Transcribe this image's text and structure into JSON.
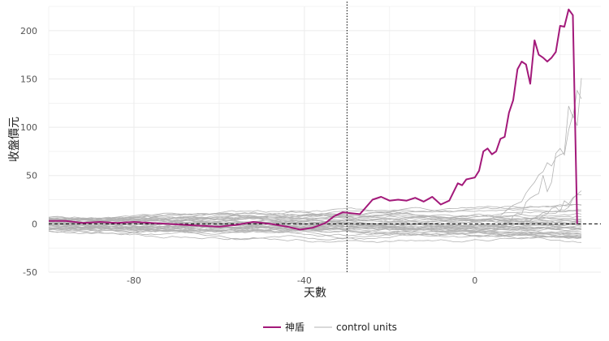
{
  "chart_data": {
    "type": "line",
    "title": "",
    "xlabel": "天數",
    "ylabel": "收盤價元",
    "xlim": [
      -100,
      25
    ],
    "ylim": [
      -50,
      225
    ],
    "x_ticks": [
      -80,
      -40,
      0
    ],
    "y_ticks": [
      -50,
      0,
      50,
      100,
      150,
      200
    ],
    "intervention_x": -30,
    "reference_y": 0,
    "grid": true,
    "legend_position": "bottom",
    "treated": {
      "name": "神盾",
      "color": "#a3197a",
      "x": [
        -100,
        -96,
        -92,
        -88,
        -84,
        -80,
        -76,
        -72,
        -68,
        -64,
        -60,
        -56,
        -52,
        -48,
        -44,
        -41,
        -38,
        -35,
        -33,
        -31,
        -29,
        -27,
        -26,
        -24,
        -22,
        -20,
        -18,
        -16,
        -14,
        -12,
        -10,
        -8,
        -6,
        -4,
        -3,
        -2,
        -1,
        0,
        1,
        2,
        3,
        4,
        5,
        6,
        7,
        8,
        9,
        10,
        11,
        12,
        13,
        14,
        15,
        16,
        17,
        18,
        19,
        20,
        21,
        22,
        23,
        24,
        25
      ],
      "values": [
        3,
        3,
        1,
        2,
        1,
        2,
        1,
        0,
        -1,
        -2,
        -3,
        -1,
        2,
        0,
        -3,
        -6,
        -4,
        1,
        8,
        12,
        11,
        10,
        15,
        25,
        28,
        24,
        25,
        24,
        27,
        23,
        28,
        20,
        24,
        42,
        40,
        46,
        47,
        48,
        55,
        75,
        78,
        72,
        75,
        88,
        90,
        115,
        128,
        160,
        168,
        165,
        145,
        190,
        175,
        172,
        168,
        172,
        178,
        205,
        204,
        222,
        216,
        0,
        0
      ]
    },
    "control_units": {
      "name": "control units",
      "color": "#b3b3b3",
      "count": 40
    }
  }
}
